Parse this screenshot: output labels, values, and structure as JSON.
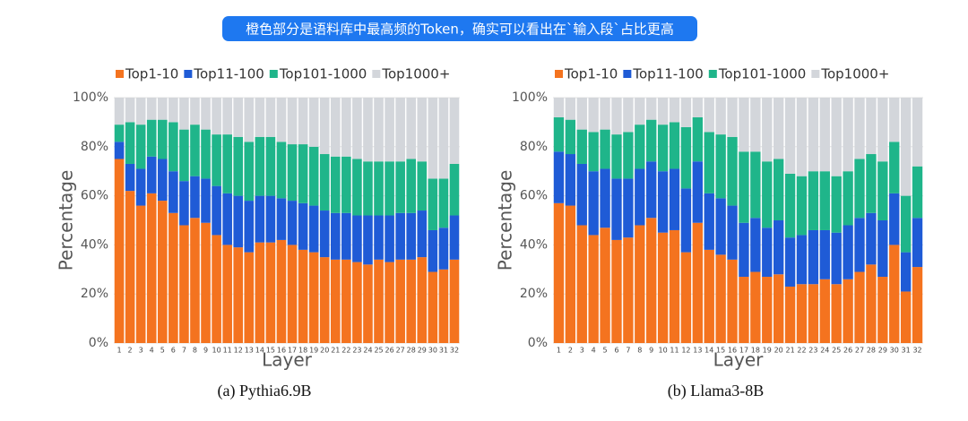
{
  "banner": "橙色部分是语料库中最高频的Token，确实可以看出在`输入段`占比更高",
  "chart_data": [
    {
      "type": "stacked_bar",
      "title": "(a) Pythia6.9B",
      "xlabel": "Layer",
      "ylabel": "Percentage",
      "categories": [
        "1",
        "2",
        "3",
        "4",
        "5",
        "6",
        "7",
        "8",
        "9",
        "10",
        "11",
        "12",
        "13",
        "14",
        "15",
        "16",
        "17",
        "18",
        "19",
        "20",
        "21",
        "22",
        "23",
        "24",
        "25",
        "26",
        "27",
        "28",
        "29",
        "30",
        "31",
        "32"
      ],
      "series": [
        {
          "name": "Top1-10",
          "color": "#f4731f",
          "values": [
            75,
            62,
            56,
            61,
            58,
            53,
            48,
            51,
            49,
            44,
            40,
            39,
            37,
            41,
            41,
            42,
            40,
            38,
            37,
            35,
            34,
            34,
            33,
            32,
            34,
            33,
            34,
            34,
            35,
            29,
            30,
            34
          ]
        },
        {
          "name": "Top11-100",
          "color": "#1f5bd6",
          "values": [
            7,
            11,
            15,
            15,
            17,
            17,
            18,
            17,
            18,
            20,
            21,
            21,
            21,
            19,
            19,
            17,
            18,
            19,
            19,
            19,
            19,
            19,
            19,
            20,
            18,
            19,
            19,
            19,
            19,
            17,
            17,
            18
          ]
        },
        {
          "name": "Top101-1000",
          "color": "#1fb58a",
          "values": [
            7,
            17,
            18,
            15,
            16,
            20,
            21,
            21,
            20,
            21,
            24,
            24,
            24,
            24,
            24,
            23,
            23,
            24,
            24,
            23,
            23,
            23,
            23,
            22,
            22,
            22,
            21,
            22,
            20,
            21,
            20,
            21
          ]
        },
        {
          "name": "Top1000+",
          "color": "#d3d6db",
          "values": [
            11,
            10,
            11,
            9,
            9,
            10,
            13,
            11,
            13,
            15,
            15,
            16,
            18,
            16,
            16,
            18,
            19,
            19,
            20,
            23,
            24,
            24,
            25,
            26,
            26,
            26,
            26,
            25,
            26,
            33,
            33,
            27
          ]
        }
      ],
      "ylim": [
        0,
        100
      ],
      "yticks": [
        {
          "value": 0,
          "label": "0%"
        },
        {
          "value": 20,
          "label": "20%"
        },
        {
          "value": 40,
          "label": "40%"
        },
        {
          "value": 60,
          "label": "60%"
        },
        {
          "value": 80,
          "label": "80%"
        },
        {
          "value": 100,
          "label": "100%"
        }
      ],
      "grid": true,
      "legend": "top"
    },
    {
      "type": "stacked_bar",
      "title": "(b) Llama3-8B",
      "xlabel": "Layer",
      "ylabel": "Percentage",
      "categories": [
        "1",
        "2",
        "3",
        "4",
        "5",
        "6",
        "7",
        "8",
        "9",
        "10",
        "11",
        "12",
        "13",
        "14",
        "15",
        "16",
        "17",
        "18",
        "19",
        "20",
        "21",
        "22",
        "23",
        "24",
        "25",
        "26",
        "27",
        "28",
        "29",
        "30",
        "31",
        "32"
      ],
      "series": [
        {
          "name": "Top1-10",
          "color": "#f4731f",
          "values": [
            57,
            56,
            48,
            44,
            47,
            42,
            43,
            48,
            51,
            45,
            46,
            37,
            49,
            38,
            36,
            34,
            27,
            29,
            27,
            28,
            23,
            24,
            24,
            26,
            24,
            26,
            29,
            32,
            27,
            40,
            21,
            31
          ]
        },
        {
          "name": "Top11-100",
          "color": "#1f5bd6",
          "values": [
            21,
            21,
            25,
            26,
            24,
            25,
            24,
            23,
            23,
            25,
            25,
            26,
            25,
            23,
            23,
            22,
            22,
            22,
            20,
            22,
            20,
            20,
            22,
            20,
            21,
            22,
            22,
            21,
            23,
            21,
            16,
            20
          ]
        },
        {
          "name": "Top101-1000",
          "color": "#1fb58a",
          "values": [
            14,
            14,
            14,
            16,
            16,
            18,
            19,
            18,
            17,
            19,
            19,
            25,
            18,
            25,
            26,
            28,
            29,
            27,
            27,
            25,
            26,
            24,
            24,
            24,
            23,
            22,
            24,
            24,
            24,
            21,
            23,
            21
          ]
        },
        {
          "name": "Top1000+",
          "color": "#d3d6db",
          "values": [
            8,
            9,
            13,
            14,
            13,
            15,
            14,
            11,
            9,
            11,
            10,
            12,
            8,
            14,
            15,
            16,
            22,
            22,
            26,
            25,
            31,
            32,
            30,
            30,
            32,
            30,
            25,
            23,
            26,
            18,
            40,
            28
          ]
        }
      ],
      "ylim": [
        0,
        100
      ],
      "yticks": [
        {
          "value": 0,
          "label": "0%"
        },
        {
          "value": 20,
          "label": "20%"
        },
        {
          "value": 40,
          "label": "40%"
        },
        {
          "value": 60,
          "label": "60%"
        },
        {
          "value": 80,
          "label": "80%"
        },
        {
          "value": 100,
          "label": "100%"
        }
      ],
      "grid": true,
      "legend": "top"
    }
  ]
}
